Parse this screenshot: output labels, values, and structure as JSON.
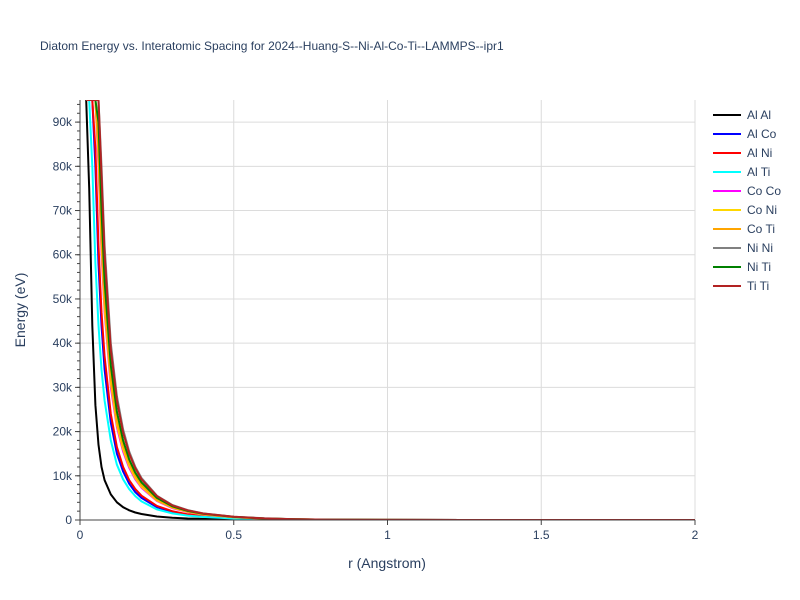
{
  "chart_data": {
    "type": "line",
    "title": "Diatom Energy vs. Interatomic Spacing for 2024--Huang-S--Ni-Al-Co-Ti--LAMMPS--ipr1",
    "xlabel": "r (Angstrom)",
    "ylabel": "Energy (eV)",
    "xlim": [
      0,
      2
    ],
    "ylim": [
      0,
      95000
    ],
    "x_ticks": [
      0,
      0.5,
      1,
      1.5,
      2
    ],
    "x_tick_labels": [
      "0",
      "0.5",
      "1",
      "1.5",
      "2"
    ],
    "y_ticks": [
      0,
      10000,
      20000,
      30000,
      40000,
      50000,
      60000,
      70000,
      80000,
      90000
    ],
    "y_tick_labels": [
      "0",
      "10k",
      "20k",
      "30k",
      "40k",
      "50k",
      "60k",
      "70k",
      "80k",
      "90k"
    ],
    "grid": true,
    "legend_position": "right",
    "x": [
      0.02,
      0.03,
      0.04,
      0.05,
      0.06,
      0.07,
      0.08,
      0.1,
      0.12,
      0.14,
      0.16,
      0.18,
      0.2,
      0.25,
      0.3,
      0.35,
      0.4,
      0.5,
      0.6,
      0.7,
      0.8,
      1.0,
      1.25,
      1.5,
      1.75,
      2.0
    ],
    "series": [
      {
        "name": "Al Al",
        "color": "#000000",
        "values": [
          95000,
          75000,
          44000,
          26000,
          17000,
          12000,
          9000,
          5800,
          4000,
          2900,
          2200,
          1700,
          1350,
          800,
          520,
          350,
          240,
          120,
          60,
          30,
          15,
          5,
          2,
          1,
          0,
          0
        ]
      },
      {
        "name": "Al Co",
        "color": "#0000ff",
        "values": [
          95000,
          95000,
          95000,
          80000,
          58000,
          44000,
          34000,
          22000,
          15000,
          11000,
          8200,
          6300,
          5000,
          2900,
          1800,
          1200,
          800,
          400,
          200,
          100,
          50,
          15,
          5,
          2,
          1,
          0
        ]
      },
      {
        "name": "Al Ni",
        "color": "#ff0000",
        "values": [
          95000,
          95000,
          95000,
          84000,
          62000,
          47000,
          37000,
          24000,
          16500,
          12000,
          9000,
          7000,
          5500,
          3200,
          2000,
          1300,
          900,
          450,
          230,
          120,
          60,
          18,
          6,
          2,
          1,
          0
        ]
      },
      {
        "name": "Al Ti",
        "color": "#00ffff",
        "values": [
          95000,
          95000,
          80000,
          58000,
          44000,
          34000,
          27000,
          18000,
          12500,
          9200,
          7000,
          5400,
          4200,
          2400,
          1500,
          1000,
          700,
          350,
          180,
          90,
          45,
          14,
          5,
          2,
          1,
          0
        ]
      },
      {
        "name": "Co Co",
        "color": "#ff00ff",
        "values": [
          95000,
          95000,
          95000,
          95000,
          80000,
          60000,
          47000,
          30000,
          21000,
          15500,
          11800,
          9200,
          7300,
          4300,
          2700,
          1800,
          1200,
          600,
          300,
          150,
          75,
          22,
          7,
          2,
          1,
          0
        ]
      },
      {
        "name": "Co Ni",
        "color": "#ffd700",
        "values": [
          95000,
          95000,
          95000,
          95000,
          82000,
          62000,
          48000,
          31000,
          21500,
          16000,
          12200,
          9500,
          7500,
          4400,
          2800,
          1850,
          1250,
          620,
          310,
          155,
          78,
          23,
          7,
          2,
          1,
          0
        ]
      },
      {
        "name": "Co Ti",
        "color": "#ffa500",
        "values": [
          95000,
          95000,
          95000,
          95000,
          84000,
          64000,
          50000,
          32000,
          22500,
          16800,
          12800,
          10000,
          7900,
          4600,
          2900,
          1950,
          1300,
          650,
          330,
          165,
          82,
          24,
          8,
          3,
          1,
          0
        ]
      },
      {
        "name": "Ni Ni",
        "color": "#808080",
        "values": [
          95000,
          95000,
          95000,
          95000,
          95000,
          80000,
          62000,
          40000,
          28000,
          20500,
          15500,
          12000,
          9500,
          5500,
          3400,
          2250,
          1500,
          750,
          380,
          190,
          95,
          28,
          9,
          3,
          1,
          0
        ]
      },
      {
        "name": "Ni Ti",
        "color": "#008000",
        "values": [
          95000,
          95000,
          95000,
          95000,
          90000,
          70000,
          54000,
          35000,
          24500,
          18000,
          13700,
          10700,
          8500,
          5000,
          3100,
          2050,
          1400,
          700,
          350,
          175,
          88,
          26,
          8,
          3,
          1,
          0
        ]
      },
      {
        "name": "Ti Ti",
        "color": "#b22222",
        "values": [
          95000,
          95000,
          95000,
          95000,
          95000,
          78000,
          60000,
          38500,
          27000,
          19800,
          15000,
          11700,
          9200,
          5400,
          3300,
          2200,
          1480,
          740,
          370,
          185,
          92,
          27,
          9,
          3,
          1,
          0
        ]
      }
    ]
  }
}
